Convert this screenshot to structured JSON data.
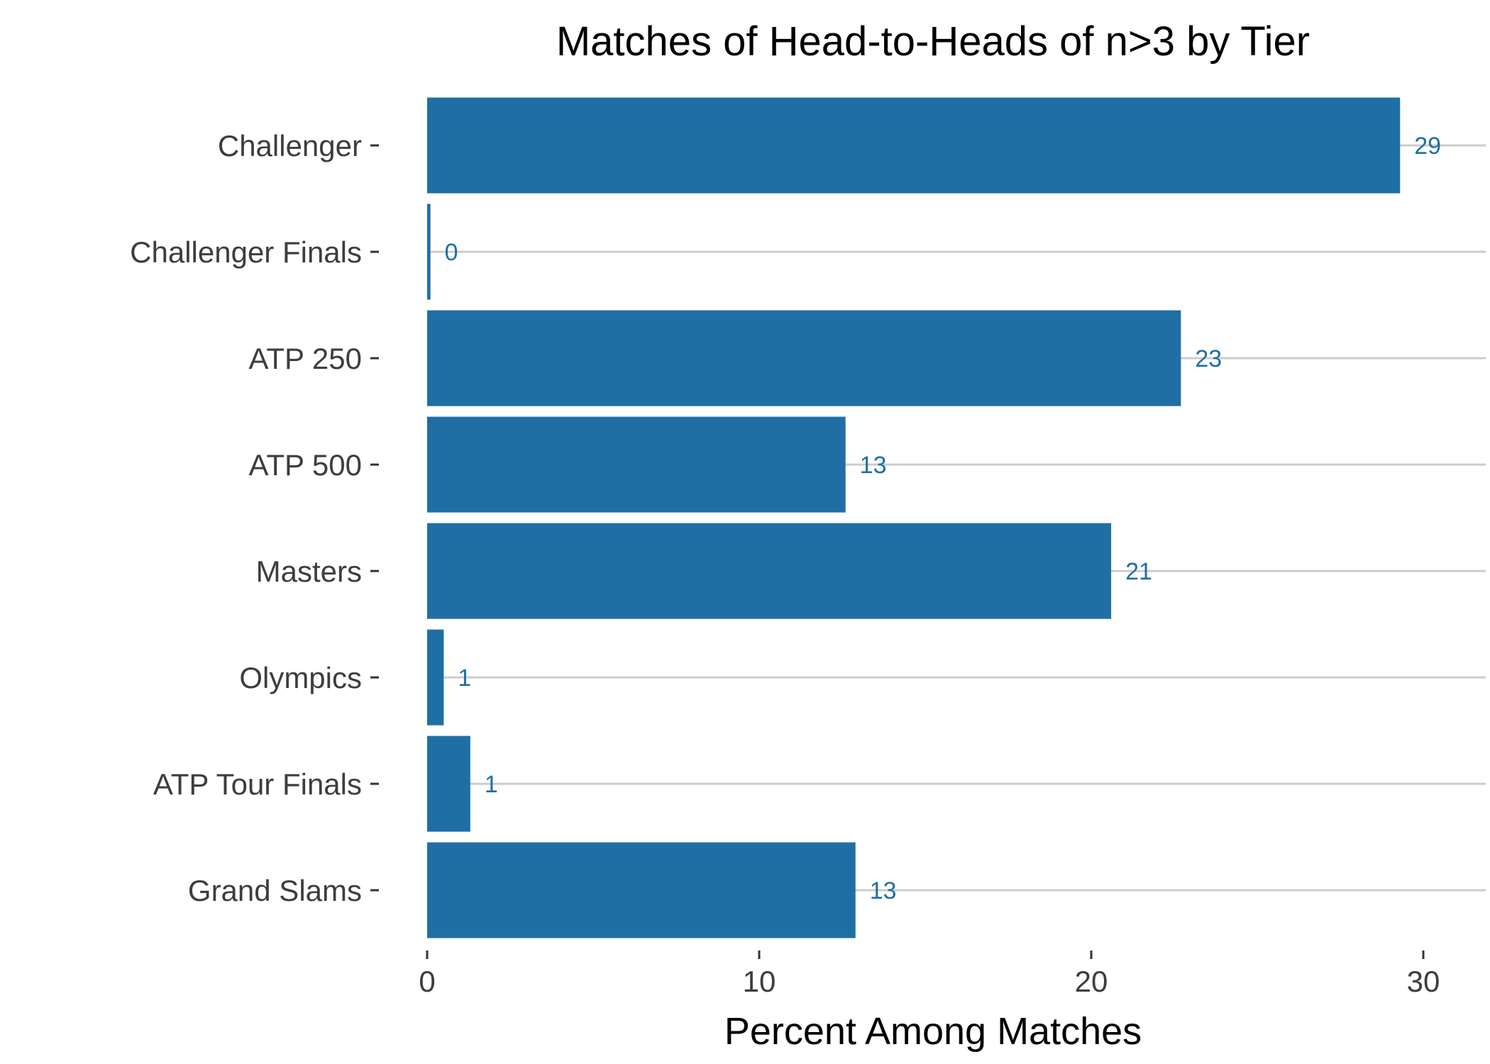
{
  "chart_data": {
    "type": "bar",
    "orientation": "horizontal",
    "title": "Matches of Head-to-Heads of n>3 by Tier",
    "xlabel": "Percent Among Matches",
    "ylabel": "",
    "categories": [
      "Challenger",
      "Challenger Finals",
      "ATP 250",
      "ATP 500",
      "Masters",
      "Olympics",
      "ATP Tour Finals",
      "Grand Slams"
    ],
    "values": [
      29.3,
      0.1,
      22.7,
      12.6,
      20.6,
      0.5,
      1.3,
      12.9
    ],
    "data_labels": [
      "29",
      "0",
      "23",
      "13",
      "21",
      "1",
      "1",
      "13"
    ],
    "xlim": [
      0,
      31.8
    ],
    "xticks": [
      0,
      10,
      20,
      30
    ],
    "xtick_labels": [
      "0",
      "10",
      "20",
      "30"
    ],
    "bar_color": "#1f6fa5",
    "label_color": "#1f6fa5",
    "grid": "horizontal major lines only",
    "legend": "none"
  }
}
